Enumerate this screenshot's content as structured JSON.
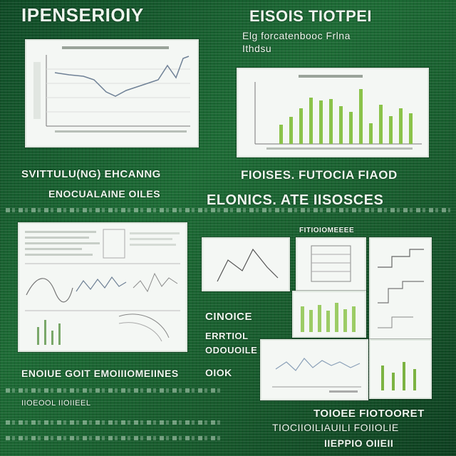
{
  "texts": {
    "title_left": "IPENSERIOIY",
    "title_right": "EISOIS TIOTPEI",
    "subtitle_right_1": "Elg forcatenbooc Frlna",
    "subtitle_right_2": "Ithdsu",
    "mid_left_1": "SVITTULU(NG) EHCANNG",
    "mid_left_2": "ENOCUALAINE OILES",
    "mid_right_1": "FIOISES. FUTOCIA FIAOD",
    "mid_right_2": "ELONICS. ATE IISOSCES",
    "right_small_title": "FITIOIOMEEEE",
    "side_1": "CINOICE",
    "side_2": "ERRTIOL",
    "side_3": "ODOUOILE",
    "side_4": "OIOK",
    "bottom_left_1": "ENOIUE GOIT EMOIIIOMEIINES",
    "bottom_left_2": "IIOEOOL IIOIIEEL",
    "bottom_right_1": "TOIOEE FIOTOORET",
    "bottom_right_2": "TIOCIIOILIAUILI FOIIOLIE",
    "bottom_right_3": "IIEPPIO OIIEII"
  },
  "colors": {
    "background": "#1d6b35",
    "panel": "#f4f7f4",
    "line": "#6f8196",
    "bar": "#8bc34a"
  }
}
